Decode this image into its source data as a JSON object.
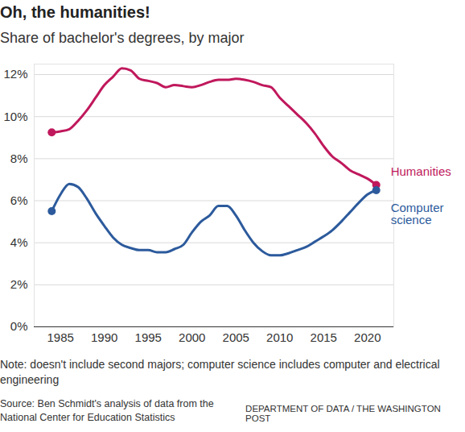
{
  "chart_data": {
    "type": "line",
    "title": "Oh, the humanities!",
    "subtitle": "Share of bachelor's degrees, by major",
    "note": "Note: doesn't include second majors; computer science includes computer and electrical engineering",
    "source": "Source: Ben Schmidt's analysis of data from the National Center for Education Statistics",
    "credit": "DEPARTMENT OF DATA / THE WASHINGTON POST",
    "x": [
      1984,
      1985,
      1986,
      1987,
      1988,
      1989,
      1990,
      1991,
      1992,
      1993,
      1994,
      1995,
      1996,
      1997,
      1998,
      1999,
      2000,
      2001,
      2002,
      2003,
      2004,
      2005,
      2006,
      2007,
      2008,
      2009,
      2010,
      2011,
      2012,
      2013,
      2014,
      2015,
      2016,
      2017,
      2018,
      2019,
      2020,
      2021
    ],
    "series": [
      {
        "name": "Humanities",
        "color": "#c0185c",
        "values": [
          9.25,
          9.3,
          9.4,
          9.8,
          10.3,
          10.9,
          11.5,
          11.9,
          12.3,
          12.2,
          11.8,
          11.7,
          11.6,
          11.4,
          11.5,
          11.45,
          11.4,
          11.5,
          11.65,
          11.75,
          11.75,
          11.8,
          11.75,
          11.65,
          11.5,
          11.4,
          10.9,
          10.5,
          10.1,
          9.7,
          9.2,
          8.6,
          8.1,
          7.8,
          7.45,
          7.25,
          7.05,
          6.75
        ]
      },
      {
        "name": "Computer science",
        "color": "#2c5a9c",
        "values": [
          5.5,
          6.3,
          6.8,
          6.65,
          6.1,
          5.4,
          4.8,
          4.25,
          3.9,
          3.75,
          3.65,
          3.65,
          3.55,
          3.55,
          3.7,
          3.9,
          4.5,
          5.0,
          5.3,
          5.75,
          5.75,
          5.3,
          4.6,
          4.0,
          3.6,
          3.4,
          3.4,
          3.5,
          3.65,
          3.8,
          4.05,
          4.3,
          4.6,
          5.0,
          5.45,
          5.9,
          6.3,
          6.5
        ]
      }
    ],
    "xlim": [
      1982,
      2023
    ],
    "xticks": [
      1985,
      1990,
      1995,
      2000,
      2005,
      2010,
      2015,
      2020
    ],
    "ylim": [
      0,
      12.5
    ],
    "yticks": [
      {
        "value": 0,
        "label": "0%"
      },
      {
        "value": 2,
        "label": "2%"
      },
      {
        "value": 4,
        "label": "4%"
      },
      {
        "value": 6,
        "label": "6%"
      },
      {
        "value": 8,
        "label": "8%"
      },
      {
        "value": 10,
        "label": "10%"
      },
      {
        "value": 12,
        "label": "12%"
      }
    ],
    "grid": true,
    "marker": "endpoints"
  }
}
